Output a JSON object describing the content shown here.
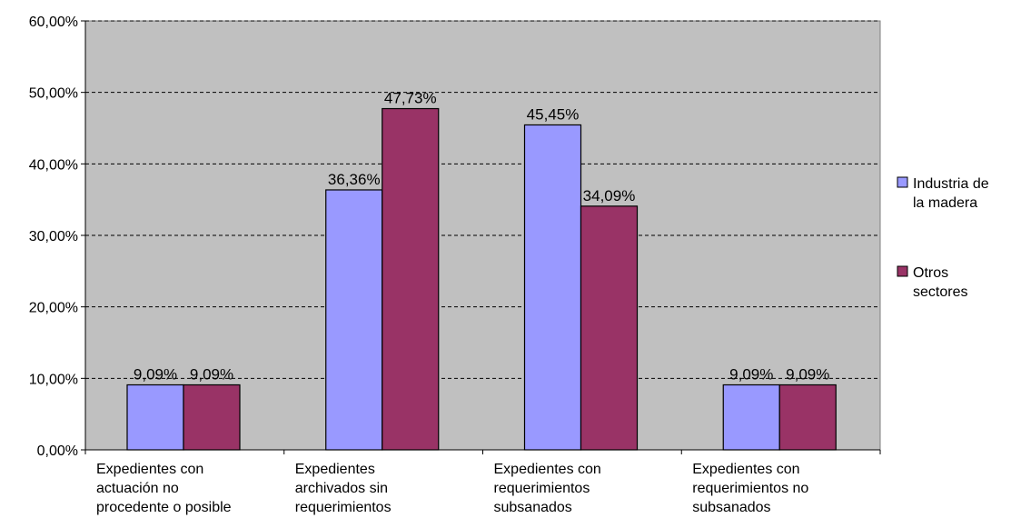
{
  "chart_data": {
    "type": "bar",
    "categories": [
      [
        "Expedientes con",
        "actuación no",
        "procedente o posible"
      ],
      [
        "Expedientes",
        "archivados sin",
        "requerimientos"
      ],
      [
        "Expedientes con",
        "requerimientos",
        "subsanados"
      ],
      [
        "Expedientes con",
        "requerimientos no",
        "subsanados"
      ]
    ],
    "series": [
      {
        "name": [
          "Industria de",
          "la madera"
        ],
        "color": "#9999ff",
        "values": [
          9.09,
          36.36,
          45.45,
          9.09
        ],
        "labels": [
          "9,09%",
          "36,36%",
          "45,45%",
          "9,09%"
        ]
      },
      {
        "name": [
          "Otros",
          "sectores"
        ],
        "color": "#993366",
        "values": [
          9.09,
          47.73,
          34.09,
          9.09
        ],
        "labels": [
          "9,09%",
          "47,73%",
          "34,09%",
          "9,09%"
        ]
      }
    ],
    "ylim": [
      0,
      60
    ],
    "yticks": [
      0,
      10,
      20,
      30,
      40,
      50,
      60
    ],
    "ytick_labels": [
      "0,00%",
      "10,00%",
      "20,00%",
      "30,00%",
      "40,00%",
      "50,00%",
      "60,00%"
    ],
    "plot_background": "#c0c0c0",
    "grid": "dashed horizontal",
    "legend_position": "right"
  }
}
